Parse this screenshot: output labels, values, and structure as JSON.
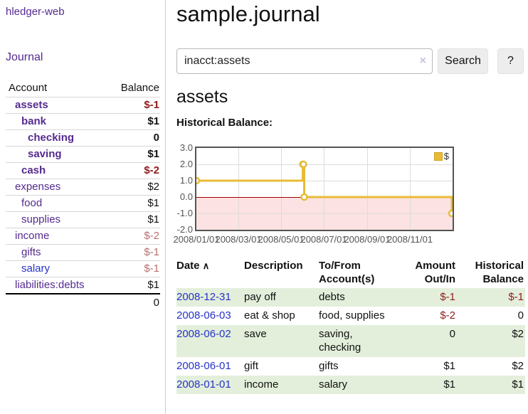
{
  "sidebar": {
    "brand": "hledger-web",
    "journal_link": "Journal",
    "accounts_table": {
      "headers": {
        "account": "Account",
        "balance": "Balance"
      },
      "rows": [
        {
          "name": "assets",
          "indent": 1,
          "bold": true,
          "link_color": "purple",
          "balance": "$-1",
          "neg": "strong"
        },
        {
          "name": "bank",
          "indent": 2,
          "bold": true,
          "link_color": "purple",
          "balance": "$1",
          "neg": "none"
        },
        {
          "name": "checking",
          "indent": 3,
          "bold": true,
          "link_color": "purple",
          "balance": "0",
          "neg": "none"
        },
        {
          "name": "saving",
          "indent": 3,
          "bold": true,
          "link_color": "purple",
          "balance": "$1",
          "neg": "none"
        },
        {
          "name": "cash",
          "indent": 2,
          "bold": true,
          "link_color": "purple",
          "balance": "$-2",
          "neg": "strong"
        },
        {
          "name": "expenses",
          "indent": 1,
          "bold": false,
          "link_color": "purple",
          "balance": "$2",
          "neg": "none"
        },
        {
          "name": "food",
          "indent": 2,
          "bold": false,
          "link_color": "purple",
          "balance": "$1",
          "neg": "none"
        },
        {
          "name": "supplies",
          "indent": 2,
          "bold": false,
          "link_color": "purple",
          "balance": "$1",
          "neg": "none"
        },
        {
          "name": "income",
          "indent": 1,
          "bold": false,
          "link_color": "purple",
          "balance": "$-2",
          "neg": "soft"
        },
        {
          "name": "gifts",
          "indent": 2,
          "bold": false,
          "link_color": "purple",
          "balance": "$-1",
          "neg": "soft"
        },
        {
          "name": "salary",
          "indent": 2,
          "bold": false,
          "link_color": "blue",
          "balance": "$-1",
          "neg": "soft"
        },
        {
          "name": "liabilities:debts",
          "indent": 1,
          "bold": false,
          "link_color": "purple",
          "balance": "$1",
          "neg": "none"
        }
      ],
      "total": "0"
    }
  },
  "header": {
    "title": "sample.journal"
  },
  "search": {
    "query": "inacct:assets",
    "clear_icon": "×",
    "button": "Search",
    "help_button": "?"
  },
  "account_page": {
    "heading": "assets",
    "chart_label": "Historical Balance:"
  },
  "chart_data": {
    "type": "line",
    "step": true,
    "title": "Historical Balance:",
    "epoch": "2008-01-01",
    "x_range_days": [
      0,
      366
    ],
    "x_ticks": [
      "2008/01/01",
      "2008/03/01",
      "2008/05/01",
      "2008/07/01",
      "2008/09/01",
      "2008/11/01"
    ],
    "x_tick_days": [
      0,
      60,
      121,
      182,
      244,
      305
    ],
    "y_ticks": [
      3.0,
      2.0,
      1.0,
      0.0,
      -1.0,
      -2.0
    ],
    "ylim": [
      -2,
      3
    ],
    "series": [
      {
        "name": "$",
        "color": "#e9bb35",
        "points": [
          [
            "2008-01-01",
            1
          ],
          [
            "2008-06-01",
            2
          ],
          [
            "2008-06-02",
            2
          ],
          [
            "2008-06-03",
            0
          ],
          [
            "2008-12-31",
            -1
          ]
        ]
      }
    ],
    "legend": {
      "label": "$",
      "position": "top-right"
    },
    "negative_region_fill": "#fce2e2",
    "zero_line_color": "#a40000",
    "grid": true
  },
  "register_table": {
    "headers": {
      "date": "Date",
      "sort_icon": "∧",
      "description": "Description",
      "accounts": "To/From Account(s)",
      "amount": "Amount Out/In",
      "balance": "Historical Balance"
    },
    "rows": [
      {
        "date": "2008-12-31",
        "description": "pay off",
        "accounts": "debts",
        "amount": "$-1",
        "balance": "$-1"
      },
      {
        "date": "2008-06-03",
        "description": "eat & shop",
        "accounts": "food, supplies",
        "amount": "$-2",
        "balance": "0"
      },
      {
        "date": "2008-06-02",
        "description": "save",
        "accounts": "saving, checking",
        "amount": "0",
        "balance": "$2"
      },
      {
        "date": "2008-06-01",
        "description": "gift",
        "accounts": "gifts",
        "amount": "$1",
        "balance": "$2"
      },
      {
        "date": "2008-01-01",
        "description": "income",
        "accounts": "salary",
        "amount": "$1",
        "balance": "$1"
      }
    ]
  },
  "colors": {
    "link_purple": "#552b90",
    "link_blue": "#2632c8",
    "negative_strong": "#8f1d1d",
    "negative_soft": "#b96f6f",
    "table_stripe_green": "#e3efdb",
    "chart_line_gold": "#e9bb35",
    "chart_negative_fill": "#fce2e2",
    "chart_zero_line": "#a40000",
    "chart_border": "#545454"
  }
}
